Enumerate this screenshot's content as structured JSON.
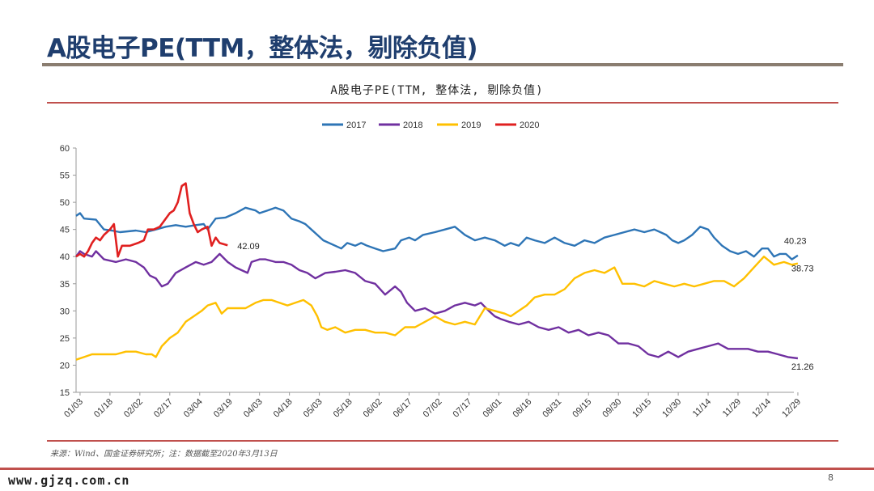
{
  "slide": {
    "title": "A股电子PE(TTM，整体法，剔除负值)",
    "source": "来源：Wind、国金证券研究所；注：数据截至2020年3月13日",
    "watermark": "www.gjzq.com.cn",
    "page_number": "8"
  },
  "colors": {
    "title": "#1f3e6e",
    "rule": "#8a7d70",
    "accent_red": "#c0504d",
    "series_2017": "#2e75b6",
    "series_2018": "#7030a0",
    "series_2019": "#ffc000",
    "series_2020": "#e02020"
  },
  "chart_data": {
    "type": "line",
    "title": "A股电子PE(TTM, 整体法, 剔除负值)",
    "xlabel": "",
    "ylabel": "",
    "ylim": [
      15,
      60
    ],
    "yticks": [
      15,
      20,
      25,
      30,
      35,
      40,
      45,
      50,
      55,
      60
    ],
    "x_domain_days": [
      0,
      360
    ],
    "xticks": [
      {
        "label": "01/03",
        "day": 2
      },
      {
        "label": "01/18",
        "day": 17
      },
      {
        "label": "02/02",
        "day": 32
      },
      {
        "label": "02/17",
        "day": 47
      },
      {
        "label": "03/04",
        "day": 62
      },
      {
        "label": "03/19",
        "day": 77
      },
      {
        "label": "04/03",
        "day": 92
      },
      {
        "label": "04/18",
        "day": 107
      },
      {
        "label": "05/03",
        "day": 122
      },
      {
        "label": "05/18",
        "day": 137
      },
      {
        "label": "06/02",
        "day": 152
      },
      {
        "label": "06/17",
        "day": 167
      },
      {
        "label": "07/02",
        "day": 182
      },
      {
        "label": "07/17",
        "day": 197
      },
      {
        "label": "08/01",
        "day": 212
      },
      {
        "label": "08/16",
        "day": 227
      },
      {
        "label": "08/31",
        "day": 242
      },
      {
        "label": "09/15",
        "day": 257
      },
      {
        "label": "09/30",
        "day": 272
      },
      {
        "label": "10/15",
        "day": 287
      },
      {
        "label": "10/30",
        "day": 302
      },
      {
        "label": "11/14",
        "day": 317
      },
      {
        "label": "11/29",
        "day": 332
      },
      {
        "label": "12/14",
        "day": 347
      },
      {
        "label": "12/29",
        "day": 362
      }
    ],
    "legend_position": "top",
    "grid": false,
    "series": [
      {
        "name": "2017",
        "color": "#2e75b6",
        "end_label": "40.23",
        "points": [
          [
            0,
            47.5
          ],
          [
            2,
            48
          ],
          [
            4,
            47
          ],
          [
            10,
            46.8
          ],
          [
            14,
            45
          ],
          [
            18,
            44.8
          ],
          [
            22,
            44.5
          ],
          [
            30,
            44.8
          ],
          [
            35,
            44.5
          ],
          [
            40,
            45
          ],
          [
            45,
            45.5
          ],
          [
            50,
            45.8
          ],
          [
            55,
            45.5
          ],
          [
            60,
            45.8
          ],
          [
            64,
            46
          ],
          [
            66,
            45
          ],
          [
            70,
            47
          ],
          [
            75,
            47.2
          ],
          [
            80,
            48
          ],
          [
            85,
            49
          ],
          [
            90,
            48.5
          ],
          [
            92,
            48
          ],
          [
            96,
            48.5
          ],
          [
            100,
            49
          ],
          [
            104,
            48.5
          ],
          [
            108,
            47
          ],
          [
            112,
            46.5
          ],
          [
            115,
            46
          ],
          [
            118,
            45
          ],
          [
            121,
            44
          ],
          [
            124,
            43
          ],
          [
            130,
            42
          ],
          [
            133,
            41.5
          ],
          [
            136,
            42.5
          ],
          [
            140,
            42
          ],
          [
            143,
            42.5
          ],
          [
            146,
            42
          ],
          [
            150,
            41.5
          ],
          [
            154,
            41
          ],
          [
            160,
            41.5
          ],
          [
            163,
            43
          ],
          [
            167,
            43.5
          ],
          [
            170,
            43
          ],
          [
            174,
            44
          ],
          [
            180,
            44.5
          ],
          [
            185,
            45
          ],
          [
            190,
            45.5
          ],
          [
            195,
            44
          ],
          [
            200,
            43
          ],
          [
            205,
            43.5
          ],
          [
            210,
            43
          ],
          [
            215,
            42
          ],
          [
            218,
            42.5
          ],
          [
            222,
            42
          ],
          [
            226,
            43.5
          ],
          [
            230,
            43
          ],
          [
            235,
            42.5
          ],
          [
            240,
            43.5
          ],
          [
            245,
            42.5
          ],
          [
            250,
            42
          ],
          [
            255,
            43
          ],
          [
            260,
            42.5
          ],
          [
            265,
            43.5
          ],
          [
            270,
            44
          ],
          [
            275,
            44.5
          ],
          [
            280,
            45
          ],
          [
            285,
            44.5
          ],
          [
            290,
            45
          ],
          [
            293,
            44.5
          ],
          [
            296,
            44
          ],
          [
            299,
            43
          ],
          [
            302,
            42.5
          ],
          [
            305,
            43
          ],
          [
            309,
            44
          ],
          [
            313,
            45.5
          ],
          [
            317,
            45
          ],
          [
            320,
            43.5
          ],
          [
            324,
            42
          ],
          [
            328,
            41
          ],
          [
            332,
            40.5
          ],
          [
            336,
            41
          ],
          [
            340,
            40
          ],
          [
            344,
            41.5
          ],
          [
            347,
            41.5
          ],
          [
            350,
            40
          ],
          [
            353,
            40.5
          ],
          [
            356,
            40.5
          ],
          [
            359,
            39.5
          ],
          [
            362,
            40.23
          ]
        ]
      },
      {
        "name": "2018",
        "color": "#7030a0",
        "end_label": "21.26",
        "points": [
          [
            0,
            40
          ],
          [
            2,
            41
          ],
          [
            4,
            40.5
          ],
          [
            8,
            40
          ],
          [
            10,
            41
          ],
          [
            14,
            39.5
          ],
          [
            20,
            39
          ],
          [
            25,
            39.5
          ],
          [
            30,
            39
          ],
          [
            34,
            38
          ],
          [
            37,
            36.5
          ],
          [
            40,
            36
          ],
          [
            43,
            34.5
          ],
          [
            46,
            35
          ],
          [
            50,
            37
          ],
          [
            55,
            38
          ],
          [
            60,
            39
          ],
          [
            64,
            38.5
          ],
          [
            68,
            39
          ],
          [
            72,
            40.5
          ],
          [
            76,
            39
          ],
          [
            80,
            38
          ],
          [
            83,
            37.5
          ],
          [
            86,
            37
          ],
          [
            88,
            39
          ],
          [
            92,
            39.5
          ],
          [
            95,
            39.5
          ],
          [
            100,
            39
          ],
          [
            104,
            39
          ],
          [
            108,
            38.5
          ],
          [
            112,
            37.5
          ],
          [
            116,
            37
          ],
          [
            120,
            36
          ],
          [
            125,
            37
          ],
          [
            130,
            37.2
          ],
          [
            135,
            37.5
          ],
          [
            140,
            37
          ],
          [
            145,
            35.5
          ],
          [
            150,
            35
          ],
          [
            155,
            33
          ],
          [
            160,
            34.5
          ],
          [
            163,
            33.5
          ],
          [
            166,
            31.5
          ],
          [
            170,
            30
          ],
          [
            175,
            30.5
          ],
          [
            180,
            29.5
          ],
          [
            185,
            30
          ],
          [
            190,
            31
          ],
          [
            195,
            31.5
          ],
          [
            200,
            31
          ],
          [
            203,
            31.5
          ],
          [
            207,
            30
          ],
          [
            210,
            29
          ],
          [
            213,
            28.5
          ],
          [
            217,
            28
          ],
          [
            222,
            27.5
          ],
          [
            227,
            28
          ],
          [
            232,
            27
          ],
          [
            237,
            26.5
          ],
          [
            242,
            27
          ],
          [
            247,
            26
          ],
          [
            252,
            26.5
          ],
          [
            257,
            25.5
          ],
          [
            262,
            26
          ],
          [
            267,
            25.5
          ],
          [
            272,
            24
          ],
          [
            277,
            24
          ],
          [
            282,
            23.5
          ],
          [
            287,
            22
          ],
          [
            292,
            21.5
          ],
          [
            297,
            22.5
          ],
          [
            302,
            21.5
          ],
          [
            307,
            22.5
          ],
          [
            312,
            23
          ],
          [
            317,
            23.5
          ],
          [
            322,
            24
          ],
          [
            327,
            23
          ],
          [
            332,
            23
          ],
          [
            337,
            23
          ],
          [
            342,
            22.5
          ],
          [
            347,
            22.5
          ],
          [
            352,
            22
          ],
          [
            357,
            21.5
          ],
          [
            362,
            21.26
          ]
        ]
      },
      {
        "name": "2019",
        "color": "#ffc000",
        "end_label": "38.73",
        "points": [
          [
            0,
            21
          ],
          [
            4,
            21.5
          ],
          [
            8,
            22
          ],
          [
            14,
            22
          ],
          [
            20,
            22
          ],
          [
            25,
            22.5
          ],
          [
            30,
            22.5
          ],
          [
            35,
            22
          ],
          [
            38,
            22
          ],
          [
            40,
            21.5
          ],
          [
            43,
            23.5
          ],
          [
            47,
            25
          ],
          [
            51,
            26
          ],
          [
            55,
            28
          ],
          [
            59,
            29
          ],
          [
            63,
            30
          ],
          [
            66,
            31
          ],
          [
            70,
            31.5
          ],
          [
            73,
            29.5
          ],
          [
            76,
            30.5
          ],
          [
            80,
            30.5
          ],
          [
            85,
            30.5
          ],
          [
            90,
            31.5
          ],
          [
            94,
            32
          ],
          [
            98,
            32
          ],
          [
            102,
            31.5
          ],
          [
            106,
            31
          ],
          [
            110,
            31.5
          ],
          [
            114,
            32
          ],
          [
            118,
            31
          ],
          [
            121,
            29
          ],
          [
            123,
            27
          ],
          [
            126,
            26.5
          ],
          [
            130,
            27
          ],
          [
            135,
            26
          ],
          [
            140,
            26.5
          ],
          [
            145,
            26.5
          ],
          [
            150,
            26
          ],
          [
            155,
            26
          ],
          [
            160,
            25.5
          ],
          [
            165,
            27
          ],
          [
            170,
            27
          ],
          [
            175,
            28
          ],
          [
            180,
            29
          ],
          [
            185,
            28
          ],
          [
            190,
            27.5
          ],
          [
            195,
            28
          ],
          [
            200,
            27.5
          ],
          [
            205,
            30.5
          ],
          [
            210,
            30
          ],
          [
            215,
            29.5
          ],
          [
            218,
            29
          ],
          [
            222,
            30
          ],
          [
            226,
            31
          ],
          [
            230,
            32.5
          ],
          [
            235,
            33
          ],
          [
            240,
            33
          ],
          [
            245,
            34
          ],
          [
            250,
            36
          ],
          [
            255,
            37
          ],
          [
            260,
            37.5
          ],
          [
            265,
            37
          ],
          [
            270,
            38
          ],
          [
            274,
            35
          ],
          [
            280,
            35
          ],
          [
            285,
            34.5
          ],
          [
            290,
            35.5
          ],
          [
            295,
            35
          ],
          [
            300,
            34.5
          ],
          [
            305,
            35
          ],
          [
            310,
            34.5
          ],
          [
            315,
            35
          ],
          [
            320,
            35.5
          ],
          [
            325,
            35.5
          ],
          [
            330,
            34.5
          ],
          [
            335,
            36
          ],
          [
            340,
            38
          ],
          [
            345,
            40
          ],
          [
            350,
            38.5
          ],
          [
            355,
            39
          ],
          [
            359,
            38.5
          ],
          [
            362,
            38.73
          ]
        ]
      },
      {
        "name": "2020",
        "color": "#e02020",
        "end_label": "42.09",
        "points": [
          [
            0,
            40
          ],
          [
            2,
            40.5
          ],
          [
            4,
            40
          ],
          [
            6,
            41
          ],
          [
            8,
            42.5
          ],
          [
            10,
            43.5
          ],
          [
            12,
            43
          ],
          [
            14,
            44
          ],
          [
            17,
            45
          ],
          [
            19,
            46
          ],
          [
            21,
            40
          ],
          [
            23,
            42
          ],
          [
            27,
            42
          ],
          [
            31,
            42.5
          ],
          [
            34,
            43
          ],
          [
            36,
            45
          ],
          [
            39,
            45
          ],
          [
            42,
            45.5
          ],
          [
            44,
            46.5
          ],
          [
            47,
            48
          ],
          [
            49,
            48.5
          ],
          [
            51,
            50
          ],
          [
            53,
            53
          ],
          [
            55,
            53.5
          ],
          [
            57,
            48
          ],
          [
            59,
            46
          ],
          [
            61,
            44.5
          ],
          [
            63,
            45
          ],
          [
            66,
            45.5
          ],
          [
            68,
            42
          ],
          [
            70,
            43.5
          ],
          [
            72,
            42.5
          ],
          [
            76,
            42.09
          ]
        ]
      }
    ]
  }
}
